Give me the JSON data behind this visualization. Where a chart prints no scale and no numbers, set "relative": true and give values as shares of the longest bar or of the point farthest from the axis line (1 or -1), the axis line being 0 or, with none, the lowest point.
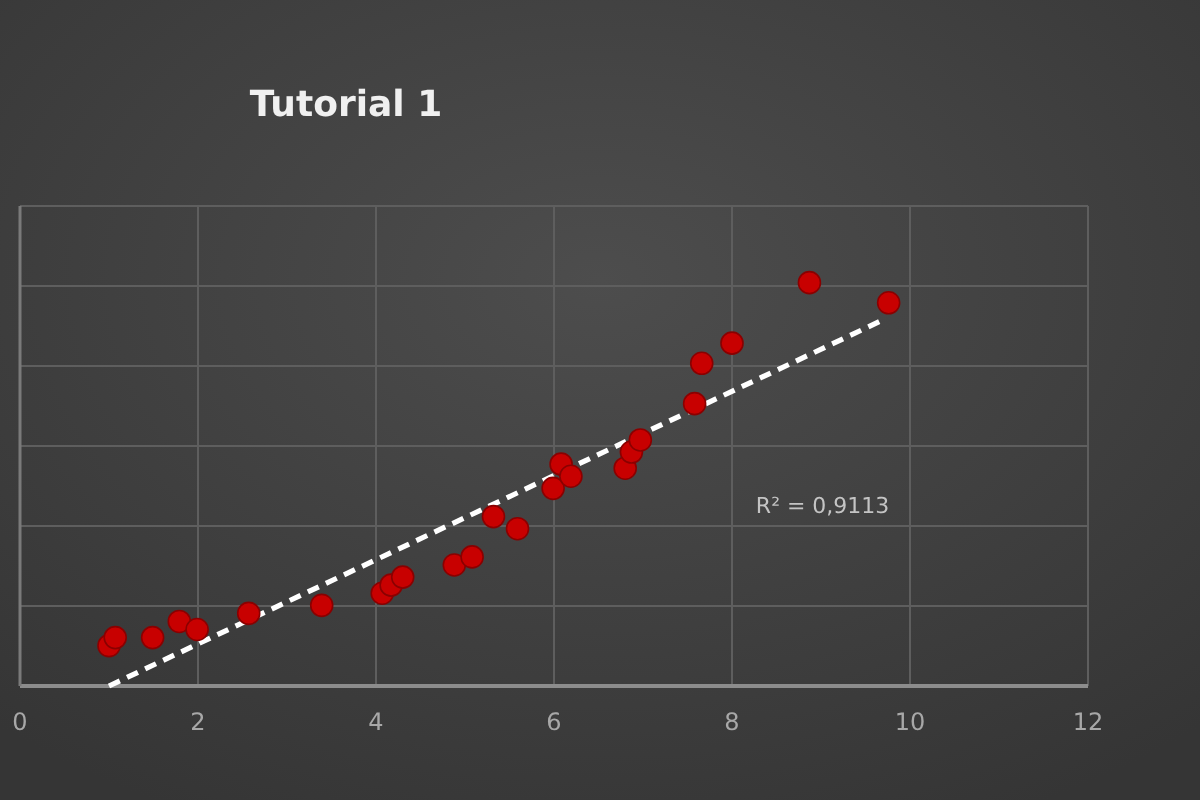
{
  "chart_data": {
    "type": "scatter",
    "title": "Tutorial 1",
    "relative": true,
    "xlim": [
      0,
      12
    ],
    "xticks": [
      0,
      2,
      4,
      6,
      8,
      10,
      12
    ],
    "grid": true,
    "tick_labels": "x",
    "series": [
      {
        "color": "#c80000",
        "marker": "circle",
        "x": [
          1.0,
          1.07,
          1.49,
          1.79,
          1.99,
          2.57,
          3.39,
          4.07,
          4.17,
          4.3,
          4.88,
          5.08,
          5.32,
          5.59,
          5.99,
          6.08,
          6.19,
          6.8,
          6.87,
          6.97,
          7.58,
          7.66,
          8.0,
          8.87,
          9.76
        ],
        "values": [
          0.1,
          0.12,
          0.12,
          0.16,
          0.14,
          0.18,
          0.2,
          0.23,
          0.25,
          0.27,
          0.3,
          0.32,
          0.42,
          0.39,
          0.49,
          0.55,
          0.52,
          0.54,
          0.58,
          0.61,
          0.7,
          0.8,
          0.85,
          1.0,
          0.95
        ]
      },
      {
        "type": "line",
        "color": "#ffffff",
        "line_style": "dashed",
        "x": [
          1.0,
          9.72
        ],
        "values": [
          0,
          0.91
        ]
      }
    ],
    "annotations": [
      "R² = 0,9113"
    ]
  }
}
